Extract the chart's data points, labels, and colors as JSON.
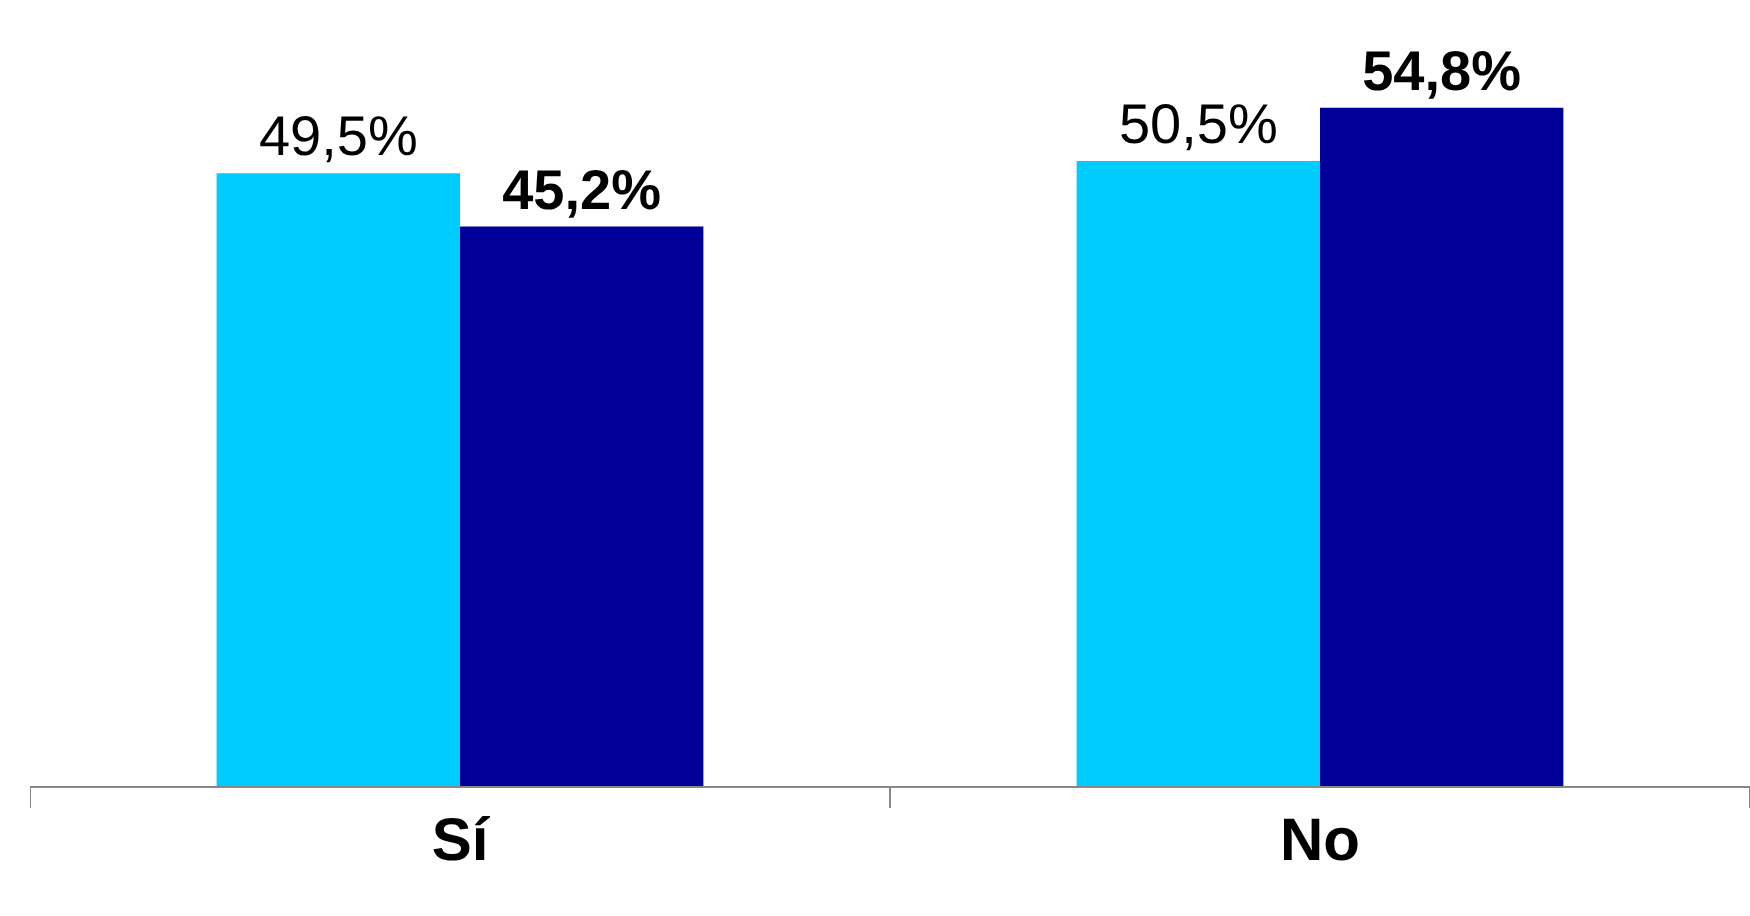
{
  "chart_data": {
    "type": "bar",
    "categories": [
      "Sí",
      "No"
    ],
    "series": [
      {
        "color": "#00ccff",
        "values": [
          49.5,
          50.5
        ],
        "value_labels": [
          "49,5%",
          "50,5%"
        ]
      },
      {
        "color": "#000099",
        "values": [
          45.2,
          54.8
        ],
        "value_labels": [
          "45,2%",
          "54,8%"
        ]
      }
    ],
    "ylim": [
      0,
      63.5
    ],
    "tick_labels": "x"
  }
}
